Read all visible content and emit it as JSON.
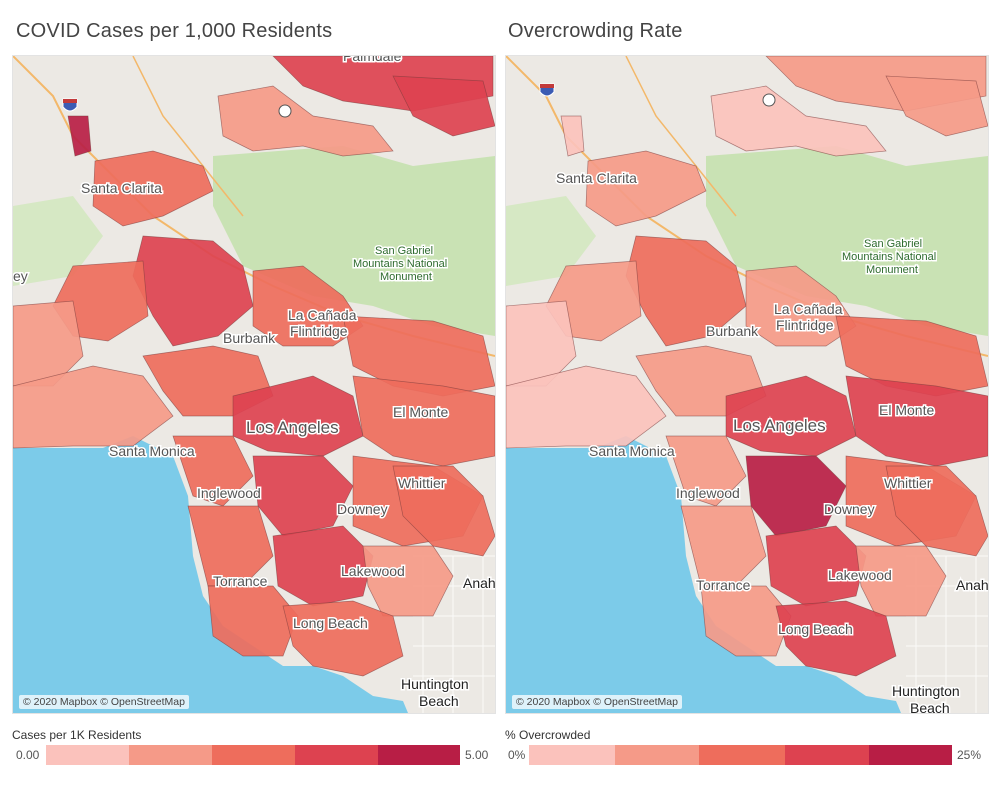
{
  "panels": [
    {
      "title": "COVID Cases per 1,000 Residents",
      "legend_title": "Cases per 1K Residents",
      "legend_min": "0.00",
      "legend_max": "5.00"
    },
    {
      "title": "Overcrowding Rate",
      "legend_title": "% Overcrowded",
      "legend_min": "0%",
      "legend_max": "25%"
    }
  ],
  "attribution": "© 2020 Mapbox © OpenStreetMap",
  "places": {
    "palmdale": "Palmdale",
    "santa_clarita": "Santa Clarita",
    "san_gabriel": [
      "San Gabriel",
      "Mountains National",
      "Monument"
    ],
    "la_canada": [
      "La Cañada",
      "Flintridge"
    ],
    "burbank": "Burbank",
    "los_angeles": "Los Angeles",
    "santa_monica": "Santa Monica",
    "inglewood": "Inglewood",
    "downey": "Downey",
    "whittier": "Whittier",
    "el_monte": "El Monte",
    "torrance": "Torrance",
    "lakewood": "Lakewood",
    "long_beach": "Long Beach",
    "anaheim": "Anah",
    "huntington_beach": [
      "Huntington",
      "Beach"
    ],
    "left_edge": "ey"
  },
  "colors": {
    "scale": [
      "#fbc2bc",
      "#f59a88",
      "#ee6d5c",
      "#dd4250",
      "#b81e45"
    ],
    "ocean": "#7ccbe9",
    "land": "#ece9e4",
    "park": "#c9e2b4",
    "road": "#f3b86a",
    "boundary": "#7a3a3a"
  }
}
